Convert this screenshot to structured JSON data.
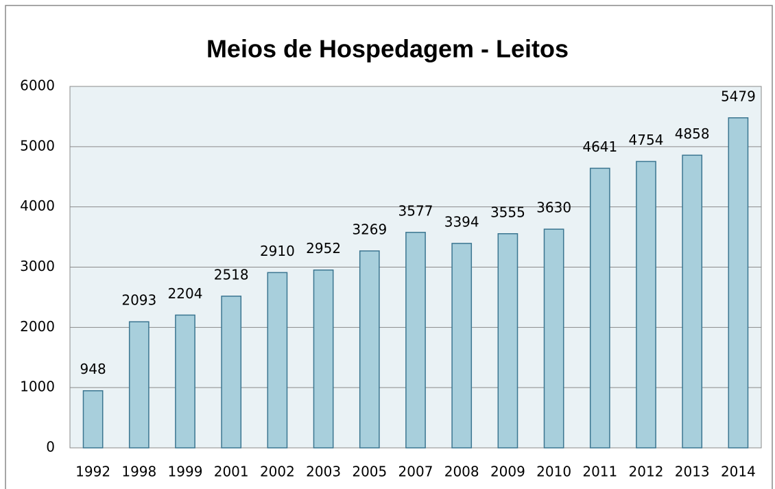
{
  "chart_data": {
    "type": "bar",
    "title": "Meios de Hospedagem - Leitos",
    "categories": [
      "1992",
      "1998",
      "1999",
      "2001",
      "2002",
      "2003",
      "2005",
      "2007",
      "2008",
      "2009",
      "2010",
      "2011",
      "2012",
      "2013",
      "2014"
    ],
    "values": [
      948,
      2093,
      2204,
      2518,
      2910,
      2952,
      3269,
      3577,
      3394,
      3555,
      3630,
      4641,
      4754,
      4858,
      5479
    ],
    "color": "#a8cfdc",
    "ylim": [
      0,
      6000
    ],
    "yticks": [
      0,
      1000,
      2000,
      3000,
      4000,
      5000,
      6000
    ],
    "grid": true
  }
}
